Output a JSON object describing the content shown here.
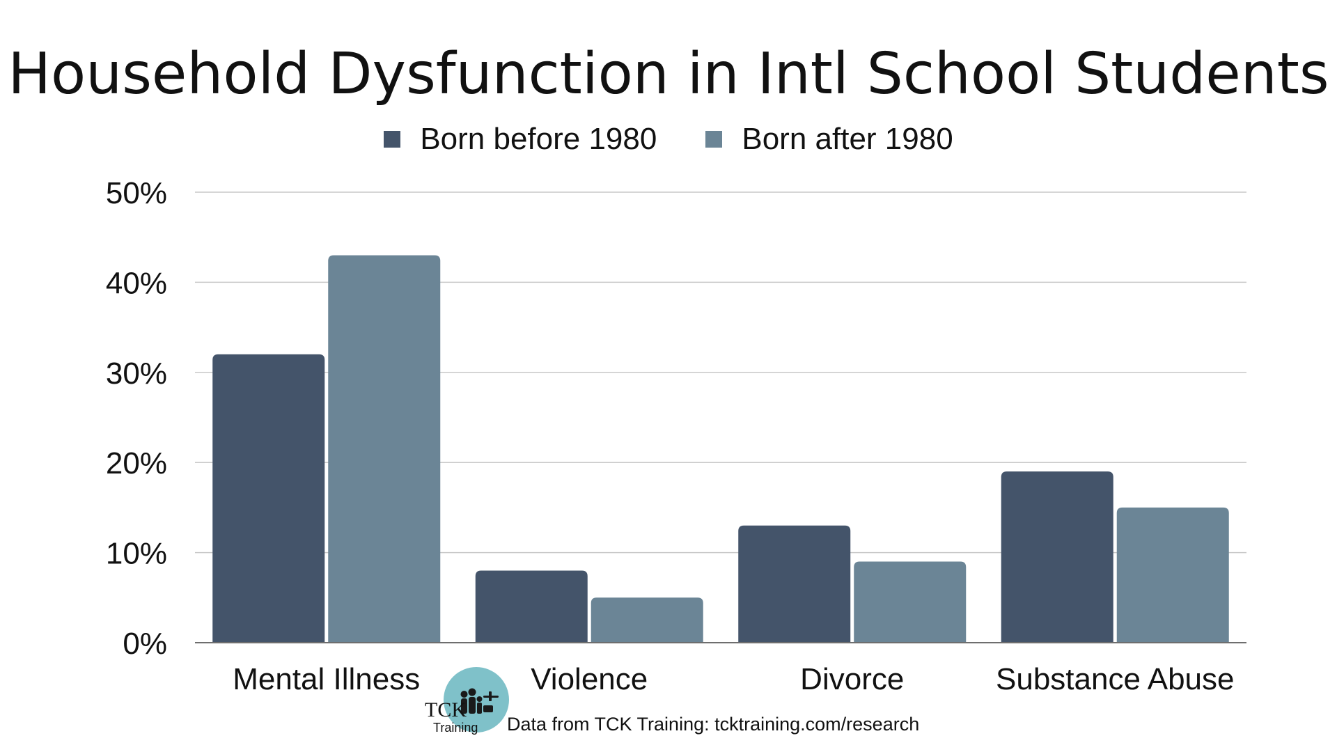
{
  "chart_data": {
    "type": "bar",
    "title": "Household Dysfunction in Intl School Students",
    "categories": [
      "Mental Illness",
      "Violence",
      "Divorce",
      "Substance Abuse"
    ],
    "series": [
      {
        "name": "Born before 1980",
        "color": "#44546a",
        "values": [
          32,
          8,
          13,
          19
        ]
      },
      {
        "name": "Born after 1980",
        "color": "#6b8596",
        "values": [
          43,
          5,
          9,
          15
        ]
      }
    ],
    "y_ticks": [
      "0%",
      "10%",
      "20%",
      "30%",
      "40%",
      "50%"
    ],
    "ylim": [
      0,
      50
    ],
    "y_unit": "%",
    "grid": true,
    "legend_position": "top-center"
  },
  "footer": {
    "logo_text_1": "TCK",
    "logo_text_2": "Training",
    "source": "Data from TCK Training: tcktraining.com/research"
  },
  "colors": {
    "gridline": "#c8c8c8",
    "axis": "#6e6e6e",
    "logo_circle": "#7fc1c9"
  }
}
